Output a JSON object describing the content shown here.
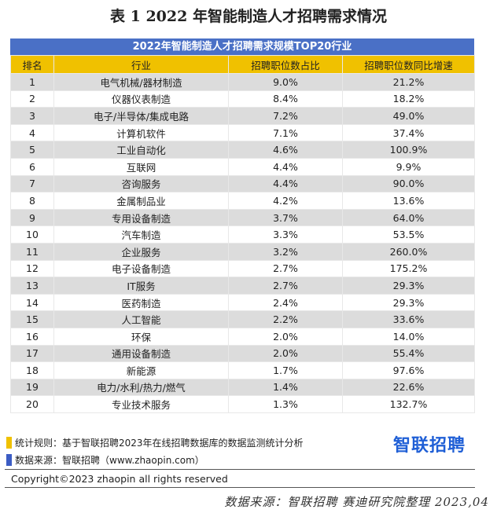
{
  "title": "表 1  2022 年智能制造人才招聘需求情况",
  "table": {
    "banner": "2022年智能制造人才招聘需求规模TOP20行业",
    "headers": [
      "排名",
      "行业",
      "招聘职位数占比",
      "招聘职位数同比增速"
    ],
    "rows": [
      [
        "1",
        "电气机械/器材制造",
        "9.0%",
        "21.2%"
      ],
      [
        "2",
        "仪器仪表制造",
        "8.4%",
        "18.2%"
      ],
      [
        "3",
        "电子/半导体/集成电路",
        "7.2%",
        "49.0%"
      ],
      [
        "4",
        "计算机软件",
        "7.1%",
        "37.4%"
      ],
      [
        "5",
        "工业自动化",
        "4.6%",
        "100.9%"
      ],
      [
        "6",
        "互联网",
        "4.4%",
        "9.9%"
      ],
      [
        "7",
        "咨询服务",
        "4.4%",
        "90.0%"
      ],
      [
        "8",
        "金属制品业",
        "4.2%",
        "13.6%"
      ],
      [
        "9",
        "专用设备制造",
        "3.7%",
        "64.0%"
      ],
      [
        "10",
        "汽车制造",
        "3.3%",
        "53.5%"
      ],
      [
        "11",
        "企业服务",
        "3.2%",
        "260.0%"
      ],
      [
        "12",
        "电子设备制造",
        "2.7%",
        "175.2%"
      ],
      [
        "13",
        "IT服务",
        "2.7%",
        "29.3%"
      ],
      [
        "14",
        "医药制造",
        "2.4%",
        "29.3%"
      ],
      [
        "15",
        "人工智能",
        "2.2%",
        "33.6%"
      ],
      [
        "16",
        "环保",
        "2.0%",
        "14.0%"
      ],
      [
        "17",
        "通用设备制造",
        "2.0%",
        "55.4%"
      ],
      [
        "18",
        "新能源",
        "1.7%",
        "97.6%"
      ],
      [
        "19",
        "电力/水利/热力/燃气",
        "1.4%",
        "22.6%"
      ],
      [
        "20",
        "专业技术服务",
        "1.3%",
        "132.7%"
      ]
    ]
  },
  "notes": {
    "rule": "统计规则：基于智联招聘2023年在线招聘数据库的数据监测统计分析",
    "source": "数据来源：智联招聘（www.zhaopin.com）"
  },
  "brand": "智联招聘",
  "copyright": "Copyright©2023 zhaopin all rights reserved",
  "footer_source": "数据来源：智联招聘 赛迪研究院整理 2023,04",
  "colors": {
    "banner": "#4a70c6",
    "header": "#f0c100",
    "row_alt": "#dcdcdc",
    "brand": "#1f5fd6"
  }
}
